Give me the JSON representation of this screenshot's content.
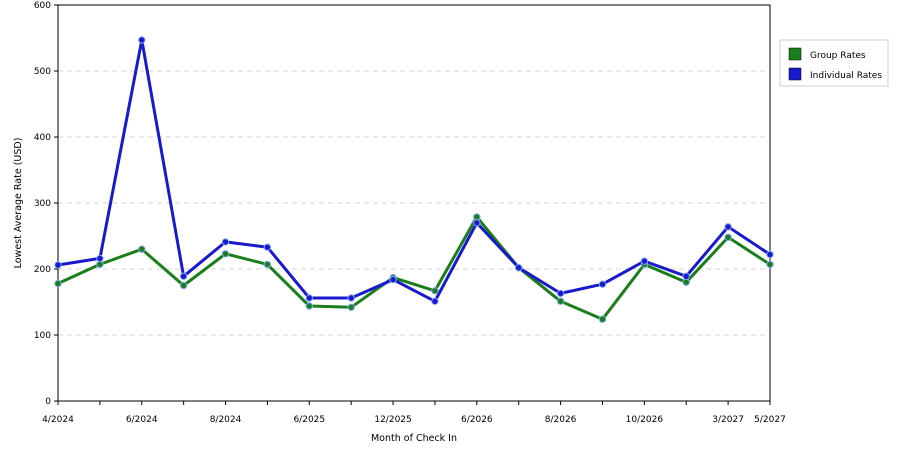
{
  "chart_data": {
    "type": "line",
    "title": "",
    "xlabel": "Month of Check In",
    "ylabel": "Lowest Average Rate (USD)",
    "ylim": [
      0,
      600
    ],
    "yticks": [
      0,
      100,
      200,
      300,
      400,
      500,
      600
    ],
    "grid": "horizontal dashed",
    "legend_position": "right",
    "x_tick_labels": [
      "4/2024",
      "6/2024",
      "8/2024",
      "6/2025",
      "12/2025",
      "6/2026",
      "8/2026",
      "10/2026",
      "3/2027",
      "5/2027"
    ],
    "x_tick_label_indices": [
      0,
      2,
      4,
      6,
      8,
      10,
      12,
      14,
      16,
      17
    ],
    "point_count": 18,
    "series": [
      {
        "name": "Group Rates",
        "color": "#1a7f1a",
        "values": [
          178,
          207,
          230,
          175,
          223,
          207,
          144,
          142,
          187,
          167,
          279,
          202,
          151,
          124,
          207,
          180,
          248,
          207
        ]
      },
      {
        "name": "Individual Rates",
        "color": "#1a1acd",
        "values": [
          206,
          216,
          547,
          189,
          241,
          233,
          156,
          156,
          184,
          151,
          270,
          202,
          163,
          177,
          212,
          189,
          264,
          222
        ]
      }
    ]
  }
}
